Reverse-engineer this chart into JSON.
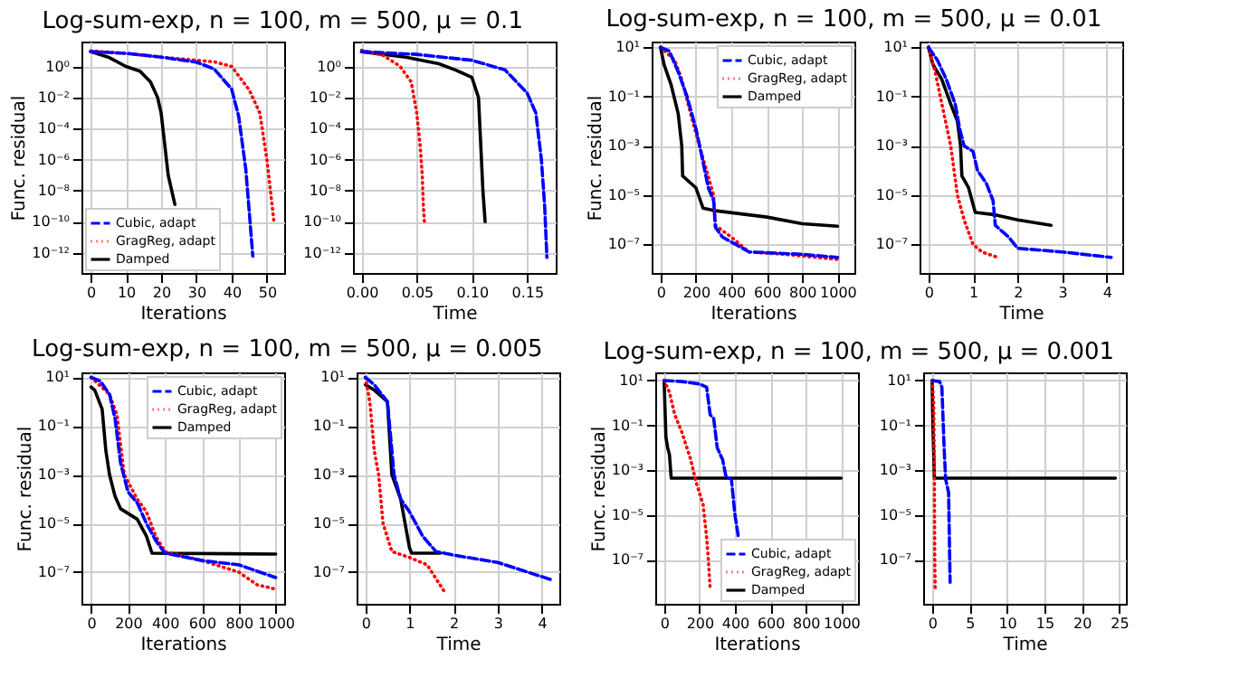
{
  "chart_data": [
    {
      "type": "line",
      "title": "Log-sum-exp, n = 100, m = 500, μ = 0.1",
      "xlabel": "Iterations",
      "ylabel": "Func. residual",
      "log": "y",
      "grid": true,
      "legend": "bottom left",
      "xlim": [
        -2.6,
        54.9
      ],
      "ylim": [
        5e-14,
        40
      ],
      "xticks": [
        0,
        10,
        20,
        30,
        40,
        50
      ],
      "yticks": [
        {
          "value": 1,
          "label": "10⁰"
        },
        {
          "value": 0.01,
          "label": "10⁻²"
        },
        {
          "value": 0.0001,
          "label": "10⁻⁴"
        },
        {
          "value": 1e-06,
          "label": "10⁻⁶"
        },
        {
          "value": 1e-08,
          "label": "10⁻⁸"
        },
        {
          "value": 1e-10,
          "label": "10⁻¹⁰"
        },
        {
          "value": 1e-12,
          "label": "10⁻¹²"
        }
      ],
      "series": [
        {
          "name": "Cubic, adapt",
          "color": "#0000ff",
          "line_style": "dashed",
          "x": [
            0,
            10,
            20,
            30,
            35,
            40,
            42,
            44,
            45,
            46
          ],
          "values": [
            9,
            7,
            4,
            1.9,
            0.7,
            0.035,
            0.0006,
            2.5e-07,
            4e-10,
            6e-13
          ]
        },
        {
          "name": "GragReg, adapt",
          "color": "#ff0000",
          "line_style": "dotted",
          "x": [
            0,
            10,
            20,
            30,
            35,
            40,
            45,
            48,
            50,
            51,
            52
          ],
          "values": [
            10,
            7,
            4,
            2.5,
            2,
            1,
            0.03,
            0.001,
            1e-06,
            1e-08,
            1e-10
          ]
        },
        {
          "name": "Damped",
          "color": "#000000",
          "line_style": "solid",
          "x": [
            0,
            5,
            10,
            14,
            17,
            19,
            20,
            21,
            22,
            23,
            23.9
          ],
          "values": [
            9,
            4,
            1,
            0.5,
            0.1,
            0.01,
            0.001,
            1e-05,
            1e-07,
            1e-08,
            1.3e-09
          ]
        }
      ]
    },
    {
      "type": "line",
      "xlabel": "Time",
      "log": "y",
      "grid": true,
      "xlim": [
        -0.0078,
        0.176
      ],
      "ylim": [
        5e-14,
        40
      ],
      "xticks": [
        {
          "value": 0,
          "label": "0.00"
        },
        0.05,
        {
          "value": 0.1,
          "label": "0.10"
        },
        0.15
      ],
      "yticks": [
        {
          "value": 1,
          "label": "10⁰"
        },
        {
          "value": 0.01,
          "label": "10⁻²"
        },
        {
          "value": 0.0001,
          "label": "10⁻⁴"
        },
        {
          "value": 1e-06,
          "label": "10⁻⁶"
        },
        {
          "value": 1e-08,
          "label": "10⁻⁸"
        },
        {
          "value": 1e-10,
          "label": "10⁻¹⁰"
        },
        {
          "value": 1e-12,
          "label": "10⁻¹²"
        }
      ],
      "series": [
        {
          "color": "#0000ff",
          "line_style": "dashed",
          "x": [
            0,
            0.05,
            0.1,
            0.13,
            0.15,
            0.158,
            0.163,
            0.166,
            0.168
          ],
          "values": [
            9,
            6,
            2.5,
            0.6,
            0.02,
            0.001,
            1e-06,
            1e-09,
            5e-13
          ]
        },
        {
          "color": "#ff0000",
          "line_style": "dotted",
          "x": [
            0,
            0.02,
            0.035,
            0.045,
            0.05,
            0.053,
            0.055,
            0.056,
            0.057
          ],
          "values": [
            11,
            5,
            1,
            0.1,
            0.001,
            1e-05,
            1e-07,
            1e-09,
            1e-10
          ]
        },
        {
          "color": "#000000",
          "line_style": "solid",
          "x": [
            0,
            0.04,
            0.07,
            0.085,
            0.1,
            0.106,
            0.108,
            0.11,
            0.112
          ],
          "values": [
            9,
            4,
            1.5,
            0.6,
            0.2,
            0.01,
            1e-05,
            1e-08,
            1e-10
          ]
        }
      ]
    },
    {
      "type": "line",
      "title": "Log-sum-exp, n = 100, m = 500, μ = 0.01",
      "xlabel": "Iterations",
      "ylabel": "Func. residual",
      "log": "y",
      "grid": true,
      "legend": "top right",
      "xlim": [
        -50,
        1095
      ],
      "ylim": [
        7e-09,
        17
      ],
      "xticks": [
        0,
        200,
        400,
        600,
        800,
        1000
      ],
      "yticks": [
        {
          "value": 10,
          "label": "10¹"
        },
        {
          "value": 0.1,
          "label": "10⁻¹"
        },
        {
          "value": 0.001,
          "label": "10⁻³"
        },
        {
          "value": 1e-05,
          "label": "10⁻⁵"
        },
        {
          "value": 1e-07,
          "label": "10⁻⁷"
        }
      ],
      "series": [
        {
          "name": "Cubic, adapt",
          "color": "#0000ff",
          "line_style": "dashed",
          "x": [
            0,
            50,
            100,
            150,
            200,
            230,
            250,
            270,
            300,
            310,
            350,
            450,
            500,
            800,
            1000
          ],
          "values": [
            10,
            7,
            1,
            0.1,
            0.005,
            0.0005,
            0.0001,
            2e-05,
            6e-06,
            5e-07,
            2e-07,
            8e-08,
            5e-08,
            4e-08,
            3e-08
          ]
        },
        {
          "name": "GragReg, adapt",
          "color": "#ff0000",
          "line_style": "dotted",
          "x": [
            0,
            80,
            120,
            170,
            220,
            260,
            300,
            310,
            400,
            500,
            700,
            1000
          ],
          "values": [
            10,
            3,
            0.5,
            0.02,
            0.001,
            0.0001,
            1e-05,
            6e-07,
            2e-07,
            5e-08,
            4e-08,
            2.5e-08
          ]
        },
        {
          "name": "Damped",
          "color": "#000000",
          "line_style": "solid",
          "x": [
            0,
            20,
            60,
            100,
            120,
            125,
            200,
            240,
            300,
            600,
            800,
            1000
          ],
          "values": [
            10,
            2,
            0.3,
            0.02,
            0.001,
            6e-05,
            2e-05,
            3e-06,
            2.4e-06,
            1.3e-06,
            7e-07,
            5.5e-07
          ]
        }
      ]
    },
    {
      "type": "line",
      "xlabel": "Time",
      "log": "y",
      "grid": true,
      "xlim": [
        -0.2,
        4.35
      ],
      "ylim": [
        7e-09,
        17
      ],
      "xticks": [
        0,
        1,
        2,
        3,
        4
      ],
      "yticks": [
        {
          "value": 10,
          "label": "10¹"
        },
        {
          "value": 0.1,
          "label": "10⁻¹"
        },
        {
          "value": 0.001,
          "label": "10⁻³"
        },
        {
          "value": 1e-05,
          "label": "10⁻⁵"
        },
        {
          "value": 1e-07,
          "label": "10⁻⁷"
        }
      ],
      "series": [
        {
          "color": "#0000ff",
          "line_style": "dashed",
          "x": [
            0,
            0.2,
            0.4,
            0.6,
            0.7,
            0.8,
            1.0,
            1.1,
            1.3,
            1.45,
            1.5,
            1.8,
            2.0,
            3,
            4.1
          ],
          "values": [
            10,
            3,
            0.5,
            0.05,
            0.005,
            0.001,
            0.0006,
            0.0001,
            3e-05,
            6e-06,
            6e-07,
            2e-07,
            7e-08,
            5e-08,
            3e-08
          ]
        },
        {
          "color": "#ff0000",
          "line_style": "dotted",
          "x": [
            0,
            0.15,
            0.3,
            0.5,
            0.65,
            0.8,
            1.0,
            1.2,
            1.55
          ],
          "values": [
            10,
            1,
            0.05,
            0.001,
            1e-05,
            1e-06,
            1e-07,
            5e-08,
            3e-08
          ]
        },
        {
          "color": "#000000",
          "line_style": "solid",
          "x": [
            0,
            0.1,
            0.3,
            0.5,
            0.65,
            0.72,
            0.75,
            0.9,
            1.05,
            1.5,
            2.0,
            2.75
          ],
          "values": [
            10,
            2,
            0.5,
            0.05,
            0.01,
            0.001,
            6e-05,
            2e-05,
            2e-06,
            1.6e-06,
            1e-06,
            6e-07
          ]
        }
      ]
    },
    {
      "type": "line",
      "title": "Log-sum-exp, n = 100, m = 500, μ = 0.005",
      "xlabel": "Iterations",
      "ylabel": "Func. residual",
      "log": "y",
      "grid": true,
      "legend": "top right",
      "xlim": [
        -52,
        1046
      ],
      "ylim": [
        5e-09,
        16
      ],
      "xticks": [
        0,
        200,
        400,
        600,
        800,
        1000
      ],
      "yticks": [
        {
          "value": 10,
          "label": "10¹"
        },
        {
          "value": 0.1,
          "label": "10⁻¹"
        },
        {
          "value": 0.001,
          "label": "10⁻³"
        },
        {
          "value": 1e-05,
          "label": "10⁻⁵"
        },
        {
          "value": 1e-07,
          "label": "10⁻⁷"
        }
      ],
      "series": [
        {
          "name": "Cubic, adapt",
          "color": "#0000ff",
          "line_style": "dashed",
          "x": [
            0,
            50,
            100,
            130,
            160,
            200,
            250,
            300,
            350,
            400,
            600,
            800,
            1000
          ],
          "values": [
            10,
            7,
            2,
            0.2,
            0.003,
            0.0002,
            7e-05,
            1e-05,
            2e-06,
            6e-07,
            3e-07,
            2e-07,
            6e-08
          ]
        },
        {
          "name": "GragReg, adapt",
          "color": "#ff0000",
          "line_style": "dotted",
          "x": [
            0,
            100,
            140,
            180,
            250,
            300,
            350,
            400,
            600,
            800,
            900,
            1000
          ],
          "values": [
            10,
            2,
            0.3,
            0.001,
            0.0001,
            3e-05,
            3e-06,
            7e-07,
            3e-07,
            1e-07,
            3e-08,
            2e-08
          ]
        },
        {
          "name": "Damped",
          "color": "#000000",
          "line_style": "solid",
          "x": [
            0,
            20,
            60,
            80,
            100,
            130,
            160,
            250,
            300,
            330,
            1000
          ],
          "values": [
            4,
            3,
            0.5,
            0.01,
            0.001,
            0.00013,
            4e-05,
            1.5e-05,
            3e-06,
            6e-07,
            5.5e-07
          ]
        }
      ]
    },
    {
      "type": "line",
      "xlabel": "Time",
      "log": "y",
      "grid": true,
      "xlim": [
        -0.2,
        4.4
      ],
      "ylim": [
        5e-09,
        16
      ],
      "xticks": [
        0,
        1,
        2,
        3,
        4
      ],
      "yticks": [
        {
          "value": 10,
          "label": "10¹"
        },
        {
          "value": 0.1,
          "label": "10⁻¹"
        },
        {
          "value": 0.001,
          "label": "10⁻³"
        },
        {
          "value": 1e-05,
          "label": "10⁻⁵"
        },
        {
          "value": 1e-07,
          "label": "10⁻⁷"
        }
      ],
      "series": [
        {
          "color": "#0000ff",
          "line_style": "dashed",
          "x": [
            0,
            0.2,
            0.5,
            0.55,
            0.65,
            0.8,
            1.0,
            1.3,
            1.6,
            2.0,
            3.0,
            4.2
          ],
          "values": [
            10,
            5,
            1,
            0.1,
            0.001,
            0.0001,
            3e-05,
            3e-06,
            7e-07,
            5e-07,
            2.5e-07,
            5e-08
          ]
        },
        {
          "color": "#ff0000",
          "line_style": "dotted",
          "x": [
            0,
            0.1,
            0.2,
            0.3,
            0.4,
            0.6,
            1.0,
            1.4,
            1.8
          ],
          "values": [
            10,
            1,
            0.01,
            0.001,
            1e-05,
            7e-07,
            4e-07,
            2e-07,
            1.5e-08
          ]
        },
        {
          "color": "#000000",
          "line_style": "solid",
          "x": [
            0,
            0.2,
            0.5,
            0.6,
            0.8,
            1.0,
            1.05,
            1.7
          ],
          "values": [
            5,
            3,
            1,
            0.001,
            0.0001,
            1e-06,
            6e-07,
            6e-07
          ]
        }
      ]
    },
    {
      "type": "line",
      "title": "Log-sum-exp, n = 100, m = 500, μ = 0.001",
      "xlabel": "Iterations",
      "ylabel": "Func. residual",
      "log": "y",
      "grid": true,
      "legend": "bottom right",
      "xlim": [
        -50,
        1095
      ],
      "ylim": [
        1.1e-09,
        23
      ],
      "xticks": [
        0,
        200,
        400,
        600,
        800,
        1000
      ],
      "yticks": [
        {
          "value": 10,
          "label": "10¹"
        },
        {
          "value": 0.1,
          "label": "10⁻¹"
        },
        {
          "value": 0.001,
          "label": "10⁻³"
        },
        {
          "value": 1e-05,
          "label": "10⁻⁵"
        },
        {
          "value": 1e-07,
          "label": "10⁻⁷"
        }
      ],
      "series": [
        {
          "name": "Cubic, adapt",
          "color": "#0000ff",
          "line_style": "dashed",
          "x": [
            0,
            100,
            200,
            240,
            260,
            280,
            300,
            330,
            350,
            380,
            400,
            420
          ],
          "values": [
            10,
            9,
            7,
            5,
            0.3,
            0.2,
            0.01,
            0.003,
            0.0005,
            0.0004,
            1e-05,
            1e-06
          ]
        },
        {
          "name": "GragReg, adapt",
          "color": "#ff0000",
          "line_style": "dotted",
          "x": [
            0,
            30,
            60,
            100,
            150,
            180,
            220,
            240,
            250,
            260
          ],
          "values": [
            10,
            3,
            0.3,
            0.05,
            0.003,
            0.0003,
            3e-05,
            1e-06,
            1e-07,
            5e-09
          ]
        },
        {
          "name": "Damped",
          "color": "#000000",
          "line_style": "solid",
          "x": [
            0,
            10,
            20,
            30,
            40,
            1000
          ],
          "values": [
            10,
            0.03,
            0.01,
            0.005,
            0.00044,
            0.00044
          ]
        }
      ]
    },
    {
      "type": "line",
      "xlabel": "Time",
      "log": "y",
      "grid": true,
      "xlim": [
        -1.2,
        25.9
      ],
      "ylim": [
        1.1e-09,
        23
      ],
      "xticks": [
        0,
        5,
        10,
        15,
        20,
        25
      ],
      "yticks": [
        {
          "value": 10,
          "label": "10¹"
        },
        {
          "value": 0.1,
          "label": "10⁻¹"
        },
        {
          "value": 0.001,
          "label": "10⁻³"
        },
        {
          "value": 1e-05,
          "label": "10⁻⁵"
        },
        {
          "value": 1e-07,
          "label": "10⁻⁷"
        }
      ],
      "series": [
        {
          "color": "#0000ff",
          "line_style": "dashed",
          "x": [
            0,
            1,
            1.3,
            1.6,
            1.8,
            2.2,
            2.3,
            2.4
          ],
          "values": [
            10,
            9,
            5,
            0.01,
            0.0004,
            0.0001,
            1e-06,
            1e-08
          ]
        },
        {
          "color": "#ff0000",
          "line_style": "dotted",
          "x": [
            0,
            0.2,
            0.3,
            0.32,
            0.35,
            0.4
          ],
          "values": [
            10,
            1,
            0.001,
            1e-05,
            1e-07,
            5e-09
          ]
        },
        {
          "color": "#000000",
          "line_style": "solid",
          "x": [
            0,
            0.1,
            0.3,
            24.5
          ],
          "values": [
            10,
            0.1,
            0.00044,
            0.00044
          ]
        }
      ]
    }
  ]
}
